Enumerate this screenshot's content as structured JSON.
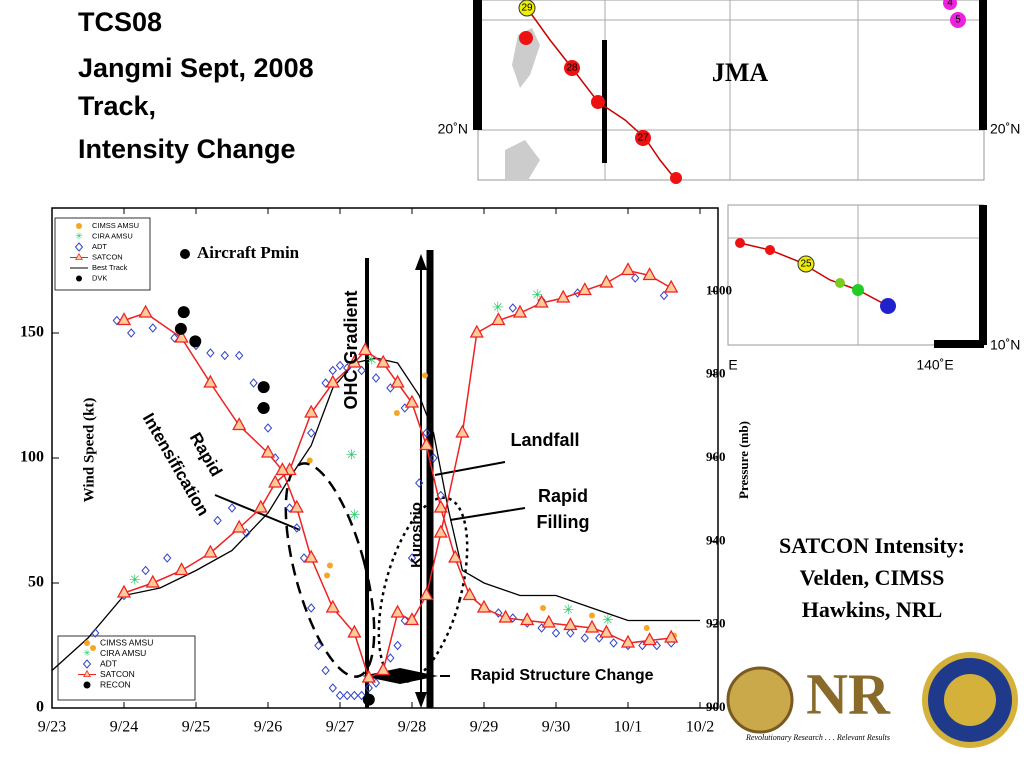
{
  "header": {
    "title_lines": [
      "TCS08",
      "Jangmi Sept, 2008",
      "Track,",
      "Intensity Change"
    ]
  },
  "map": {
    "agency": "JMA",
    "lat_labels": [
      "20˚N",
      "20˚N",
      "10˚N"
    ],
    "lon_labels": [
      "E",
      "140˚E"
    ],
    "day_labels": [
      "29",
      "28",
      "27",
      "25",
      "4",
      "5"
    ]
  },
  "credits": {
    "lines": [
      "SATCON Intensity:",
      "Velden, CIMSS",
      "Hawkins, NRL"
    ],
    "logo_text": "NR",
    "motto": "Revolutionary Research . . . Relevant Results"
  },
  "chart_data": {
    "type": "line",
    "y_label": "Wind Speed (kt)",
    "y2_label": "Pressure (mb)",
    "xlim": [
      0,
      9.25
    ],
    "xticks": [
      {
        "value": 0,
        "label": "9/23"
      },
      {
        "value": 1,
        "label": "9/24"
      },
      {
        "value": 2,
        "label": "9/25"
      },
      {
        "value": 3,
        "label": "9/26"
      },
      {
        "value": 4,
        "label": "9/27"
      },
      {
        "value": 5,
        "label": "9/28"
      },
      {
        "value": 6,
        "label": "9/29"
      },
      {
        "value": 7,
        "label": "9/30"
      },
      {
        "value": 8,
        "label": "10/1"
      },
      {
        "value": 9,
        "label": "10/2"
      }
    ],
    "ylim": [
      0,
      200
    ],
    "yticks": [
      0,
      50,
      100,
      150
    ],
    "y2lim": [
      900,
      1020
    ],
    "y2ticks": [
      900,
      920,
      940,
      960,
      980,
      1000
    ],
    "legend_top": [
      "CIMSS AMSU",
      "CIRA AMSU",
      "ADT",
      "SATCON",
      "Best Track",
      "DVK"
    ],
    "legend_bottom": [
      "CIMSS AMSU",
      "CIRA AMSU",
      "ADT",
      "SATCON",
      "RECON"
    ],
    "annotations": [
      "Aircraft Pmin",
      "Rapid",
      "Intensification",
      "OHC Gradient",
      "Kuroshio",
      "Landfall",
      "Rapid",
      "Filling",
      "Rapid Structure Change"
    ],
    "series": [
      {
        "name": "Best Track",
        "color": "#000000",
        "marker": "none",
        "line": true,
        "x": [
          0,
          0.5,
          1.0,
          1.5,
          2.0,
          2.5,
          3.0,
          3.3,
          3.6,
          3.9,
          4.2,
          4.5,
          4.8,
          5.1,
          5.3,
          5.5,
          5.7,
          6.0,
          6.5,
          7.0,
          7.5,
          8.0,
          8.5,
          9.0
        ],
        "values": [
          15,
          28,
          45,
          48,
          55,
          63,
          78,
          92,
          105,
          128,
          138,
          140,
          138,
          125,
          110,
          80,
          55,
          50,
          45,
          45,
          40,
          35,
          35,
          35
        ]
      },
      {
        "name": "ADT",
        "color": "#3344cc",
        "marker": "diamond",
        "line": false,
        "x": [
          0.9,
          1.1,
          1.4,
          1.7,
          2.0,
          2.2,
          2.4,
          2.6,
          2.8,
          2.9,
          3.0,
          3.1,
          3.2,
          3.3,
          3.4,
          3.5,
          3.6,
          3.7,
          3.8,
          3.9,
          4.0,
          4.1,
          4.2,
          4.3,
          4.4,
          4.5,
          4.6,
          4.7,
          4.8,
          4.9,
          5.0,
          5.1,
          5.2,
          5.4,
          5.6,
          5.8,
          6.0,
          6.2,
          6.4,
          6.6,
          6.8,
          7.0,
          7.2,
          7.4,
          7.6,
          7.8,
          8.0,
          8.2,
          8.4,
          8.6,
          0.6,
          1.0,
          1.3,
          1.6,
          2.3,
          2.5,
          2.7,
          3.6,
          3.8,
          3.9,
          4.0,
          4.1,
          4.3,
          4.5,
          4.7,
          4.9,
          5.3,
          6.4,
          6.8,
          7.3,
          7.7,
          8.1,
          8.5
        ],
        "values": [
          155,
          150,
          152,
          148,
          145,
          142,
          141,
          141,
          130,
          120,
          112,
          100,
          95,
          80,
          72,
          60,
          40,
          25,
          15,
          8,
          5,
          5,
          5,
          5,
          8,
          10,
          15,
          20,
          25,
          35,
          60,
          90,
          110,
          85,
          60,
          45,
          40,
          38,
          36,
          34,
          32,
          30,
          30,
          28,
          28,
          26,
          25,
          25,
          25,
          26,
          30,
          45,
          55,
          60,
          75,
          80,
          70,
          110,
          130,
          135,
          137,
          136,
          135,
          132,
          128,
          120,
          100,
          160,
          163,
          166,
          170,
          172,
          165
        ]
      },
      {
        "name": "CIMSS AMSU",
        "color": "#f5a623",
        "marker": "dot",
        "line": false,
        "x": [
          0.57,
          3.58,
          3.86,
          3.82,
          4.79,
          5.18,
          6.82,
          7.5,
          8.26,
          8.64
        ],
        "values": [
          24,
          99,
          57,
          53,
          118,
          133,
          40,
          37,
          32,
          29
        ]
      },
      {
        "name": "CIRA AMSU",
        "color": "#22cc66",
        "marker": "star",
        "line": false,
        "x": [
          1.15,
          4.16,
          4.2,
          4.44,
          6.19,
          6.74,
          7.17,
          7.72
        ],
        "values": [
          51,
          101,
          77,
          139,
          160,
          165,
          39,
          35
        ]
      },
      {
        "name": "SATCON",
        "color": "#ee2222",
        "marker": "triangle",
        "line": true,
        "x": [
          1.0,
          1.4,
          1.8,
          2.2,
          2.6,
          2.9,
          3.1,
          3.3,
          3.6,
          3.9,
          4.2,
          4.35,
          4.6,
          4.8,
          5.0,
          5.2,
          5.4,
          5.6,
          5.8,
          6.0,
          6.3,
          6.6,
          6.9,
          7.2,
          7.5,
          7.7,
          8.0,
          8.3,
          8.6
        ],
        "values": [
          46,
          50,
          55,
          62,
          72,
          80,
          90,
          95,
          118,
          130,
          138,
          143,
          138,
          130,
          122,
          105,
          80,
          60,
          45,
          40,
          36,
          35,
          34,
          33,
          32,
          30,
          26,
          27,
          28
        ]
      },
      {
        "color": "#ee2222",
        "marker": "triangle",
        "line": true,
        "x": [
          1.0,
          1.3,
          1.8,
          2.2,
          2.6,
          3.0,
          3.2,
          3.4,
          3.6,
          3.9,
          4.2,
          4.4,
          4.6,
          4.8,
          5.0,
          5.2,
          5.4,
          5.7,
          5.9,
          6.2,
          6.5,
          6.8,
          7.1,
          7.4,
          7.7,
          8.0,
          8.3,
          8.6
        ],
        "values": [
          155,
          158,
          148,
          130,
          113,
          102,
          95,
          80,
          60,
          40,
          30,
          12,
          15,
          38,
          35,
          45,
          70,
          110,
          150,
          155,
          158,
          162,
          164,
          167,
          170,
          175,
          173,
          168
        ]
      },
      {
        "name": "Aircraft Pmin",
        "color": "#000000",
        "marker": "bigdot",
        "line": false,
        "axis": "y2",
        "x": [
          1.83,
          1.79,
          1.99,
          2.94,
          2.94,
          4.4
        ],
        "values": [
          995,
          991,
          988,
          977,
          972,
          902
        ]
      }
    ]
  }
}
